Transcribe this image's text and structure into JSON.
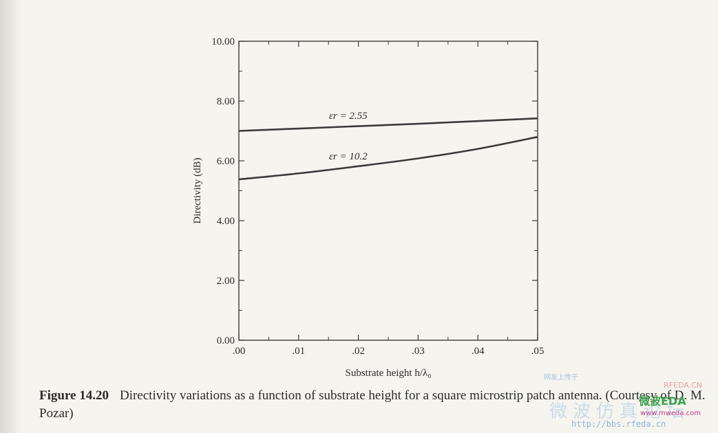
{
  "chart_data": {
    "type": "line",
    "xlabel": "Substrate height h/λ₀",
    "ylabel": "Directivity (dB)",
    "x_ticks": [
      ".00",
      ".01",
      ".02",
      ".03",
      ".04",
      ".05"
    ],
    "y_ticks": [
      "0.00",
      "2.00",
      "4.00",
      "6.00",
      "8.00",
      "10.00"
    ],
    "xlim": [
      0,
      0.05
    ],
    "ylim": [
      0,
      10
    ],
    "grid": false,
    "series": [
      {
        "name": "εr = 2.55",
        "x": [
          0.0,
          0.01,
          0.02,
          0.03,
          0.04,
          0.05
        ],
        "values": [
          7.0,
          7.08,
          7.16,
          7.24,
          7.33,
          7.42
        ],
        "color": "#3a3a3a"
      },
      {
        "name": "εr = 10.2",
        "x": [
          0.0,
          0.01,
          0.02,
          0.03,
          0.04,
          0.05
        ],
        "values": [
          5.38,
          5.58,
          5.82,
          6.08,
          6.4,
          6.8
        ],
        "color": "#3a3a3a"
      }
    ]
  },
  "caption": {
    "figure_number": "Figure 14.20",
    "text": "Directivity variations as a function of substrate height for a square microstrip patch antenna. (Courtesy of D. M. Pozar)"
  },
  "watermark": {
    "top_text": "网友上传于",
    "brand": "RFEDA.CN",
    "name": "微波EDA",
    "chinese": "微波仿真论坛",
    "url1": "www.mweda.com",
    "url2": "http://bbs.rfeda.cn"
  }
}
